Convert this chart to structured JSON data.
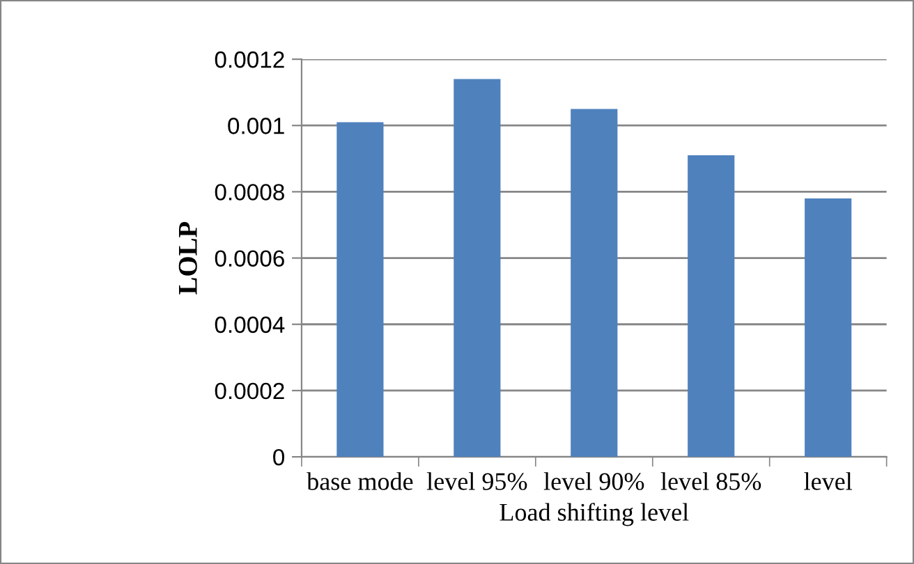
{
  "chart_data": {
    "type": "bar",
    "xlabel": "Load shifting level",
    "ylabel": "LOLP",
    "categories": [
      "base mode",
      "level 95%",
      "level 90%",
      "level 85%",
      "level"
    ],
    "values": [
      0.00101,
      0.00114,
      0.00105,
      0.00091,
      0.00078
    ],
    "color": "#4f81bd",
    "ylim": [
      0,
      0.0012
    ],
    "yticks": [
      {
        "value": 0,
        "label": "0"
      },
      {
        "value": 0.0002,
        "label": "0.0002"
      },
      {
        "value": 0.0004,
        "label": "0.0004"
      },
      {
        "value": 0.0006,
        "label": "0.0006"
      },
      {
        "value": 0.0008,
        "label": "0.0008"
      },
      {
        "value": 0.001,
        "label": "0.001"
      },
      {
        "value": 0.0012,
        "label": "0.0012"
      }
    ],
    "grid": "y",
    "legend": false
  }
}
